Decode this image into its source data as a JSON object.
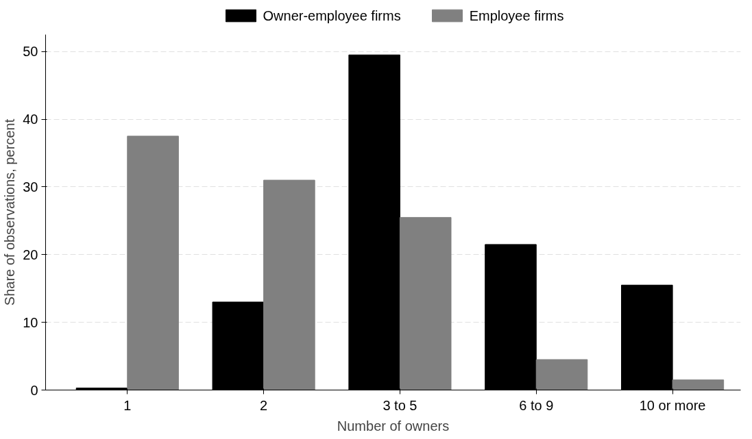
{
  "chart_data": {
    "type": "bar",
    "xlabel": "Number of owners",
    "ylabel": "Share of observations, percent",
    "categories": [
      "1",
      "2",
      "3 to 5",
      "6 to 9",
      "10 or more"
    ],
    "series": [
      {
        "name": "Owner-employee firms",
        "color": "#000000",
        "values": [
          0.3,
          13,
          49.5,
          21.5,
          15.5
        ]
      },
      {
        "name": "Employee firms",
        "color": "#808080",
        "values": [
          37.5,
          31,
          25.5,
          4.5,
          1.5
        ]
      }
    ],
    "ylim": [
      0,
      52.5
    ],
    "yticks": [
      0,
      10,
      20,
      30,
      40,
      50
    ],
    "grid": "y",
    "legend": "top"
  }
}
